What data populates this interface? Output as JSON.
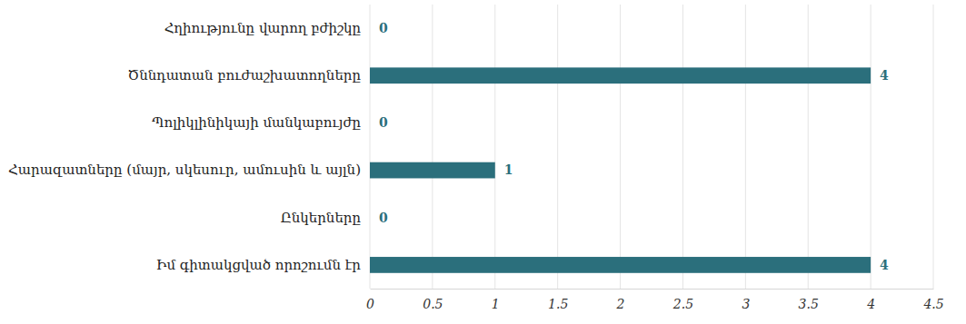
{
  "chart_data": {
    "type": "bar",
    "orientation": "horizontal",
    "categories": [
      "Հղիությունը վարող բժիշկը",
      "Ծննդատան բուժաշխատողները",
      "Պոլիկլինիկայի մանկաբույժը",
      "Հարազատները (մայր, սկեսուր, ամուսին և այլն)",
      "Ընկերները",
      "Իմ գիտակցված որոշումն էր"
    ],
    "values": [
      0,
      4,
      0,
      1,
      0,
      4
    ],
    "color": "#2b6f7c",
    "xlim": [
      0,
      4.5
    ],
    "xticks": [
      0,
      0.5,
      1,
      1.5,
      2,
      2.5,
      3,
      3.5,
      4,
      4.5
    ],
    "grid": true,
    "data_labels": true
  }
}
